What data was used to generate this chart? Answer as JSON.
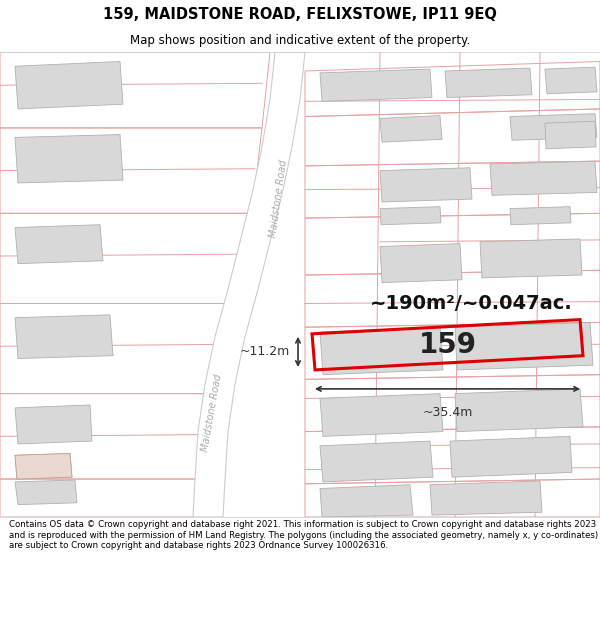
{
  "title_line1": "159, MAIDSTONE ROAD, FELIXSTOWE, IP11 9EQ",
  "title_line2": "Map shows position and indicative extent of the property.",
  "footer_text": "Contains OS data © Crown copyright and database right 2021. This information is subject to Crown copyright and database rights 2023 and is reproduced with the permission of HM Land Registry. The polygons (including the associated geometry, namely x, y co-ordinates) are subject to Crown copyright and database rights 2023 Ordnance Survey 100026316.",
  "map_bg": "#ffffff",
  "plot_line_color": "#e8a0a0",
  "plot_line_lw": 0.7,
  "road_fill": "#ffffff",
  "road_edge": "#bbbbbb",
  "building_fill": "#d8d8d8",
  "building_edge": "#b0b0b0",
  "building_lw": 0.6,
  "highlight_edge": "#dd0000",
  "highlight_lw": 2.2,
  "area_text": "~190m²/~0.047ac.",
  "label_159": "159",
  "dim_width": "~35.4m",
  "dim_height": "~11.2m",
  "road_label": "Maidstone Road",
  "road_label_color": "#aaaaaa",
  "dim_color": "#333333",
  "title_fontsize": 10.5,
  "subtitle_fontsize": 8.5,
  "footer_fontsize": 6.2
}
